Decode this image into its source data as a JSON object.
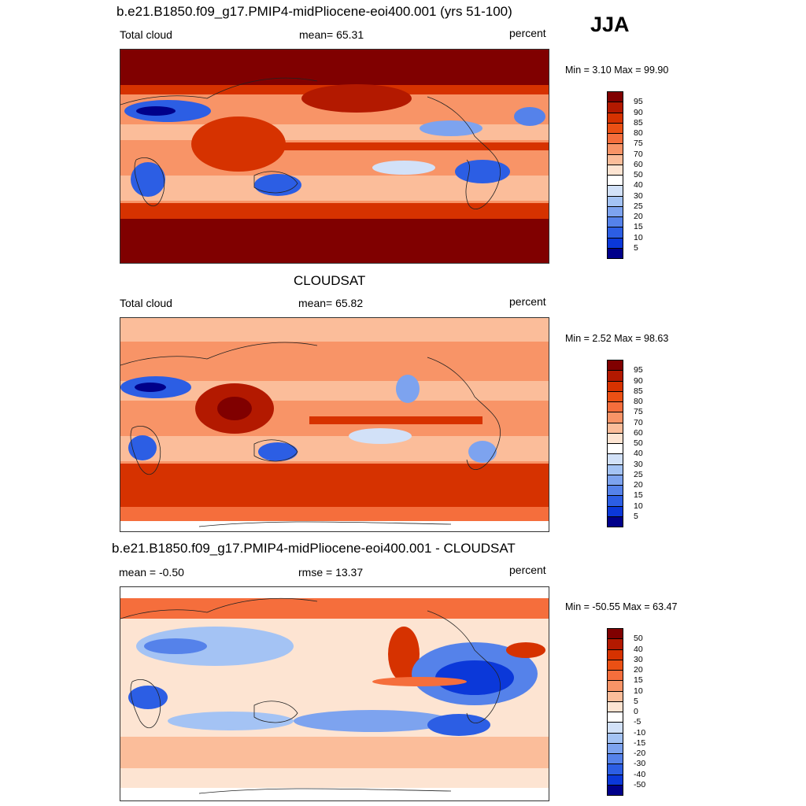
{
  "season": "JJA",
  "panels": [
    {
      "title": "b.e21.B1850.f09_g17.PMIP4-midPliocene-eoi400.001 (yrs 51-100)",
      "left_label": "Total cloud",
      "center_label": "mean=  65.31",
      "units": "percent",
      "stats": "Min =   3.10 Max =  99.90",
      "colorbar_levels": [
        "95",
        "90",
        "85",
        "80",
        "75",
        "70",
        "60",
        "50",
        "40",
        "30",
        "25",
        "20",
        "15",
        "10",
        "5"
      ]
    },
    {
      "title": "CLOUDSAT",
      "left_label": "Total cloud",
      "center_label": "mean=  65.82",
      "units": "percent",
      "stats": "Min =   2.52 Max =  98.63",
      "colorbar_levels": [
        "95",
        "90",
        "85",
        "80",
        "75",
        "70",
        "60",
        "50",
        "40",
        "30",
        "25",
        "20",
        "15",
        "10",
        "5"
      ]
    },
    {
      "title": "b.e21.B1850.f09_g17.PMIP4-midPliocene-eoi400.001 - CLOUDSAT",
      "left_label": "mean =  -0.50",
      "center_label": "rmse =  13.37",
      "units": "percent",
      "stats": "Min = -50.55 Max =  63.47",
      "colorbar_levels": [
        "50",
        "40",
        "30",
        "20",
        "15",
        "10",
        "5",
        "0",
        "-5",
        "-10",
        "-15",
        "-20",
        "-30",
        "-40",
        "-50"
      ]
    }
  ],
  "colors": {
    "abs_scale": [
      "#800000",
      "#b31900",
      "#d63200",
      "#eb5014",
      "#f56e3c",
      "#f89467",
      "#fbbd9a",
      "#fde4d2",
      "#ffffff",
      "#d2e1f8",
      "#a4c3f4",
      "#7da3ef",
      "#5582ea",
      "#2c5ee4",
      "#0b38d9",
      "#00008a"
    ],
    "diff_scale": [
      "#800000",
      "#b31900",
      "#d63200",
      "#eb5014",
      "#f56e3c",
      "#f89467",
      "#fbbd9a",
      "#fde4d2",
      "#ffffff",
      "#d2e1f8",
      "#a4c3f4",
      "#7da3ef",
      "#5582ea",
      "#2c5ee4",
      "#0b38d9",
      "#00008a"
    ]
  }
}
